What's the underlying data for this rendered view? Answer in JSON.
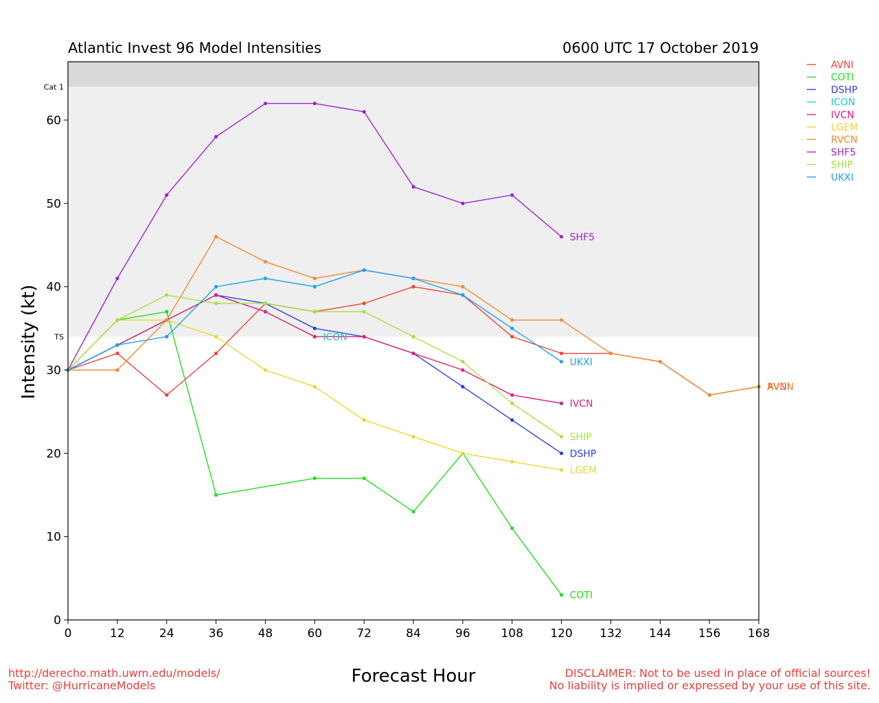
{
  "header": {
    "title": "Atlantic Invest 96 Model Intensities",
    "timestamp": "0600 UTC 17 October 2019"
  },
  "footer": {
    "url": "http://derecho.math.uwm.edu/models/",
    "twitter": "Twitter: @HurricaneModels",
    "disclaimer_line1": "DISCLAIMER: Not to be used in place of official sources!",
    "disclaimer_line2": "No liability is implied or expressed by your use of this site."
  },
  "chart_data": {
    "type": "line",
    "title": "Atlantic Invest 96 Model Intensities",
    "xlabel": "Forecast Hour",
    "ylabel": "Intensity (kt)",
    "xlim": [
      0,
      168
    ],
    "ylim": [
      0,
      67
    ],
    "x_ticks": [
      0,
      12,
      24,
      36,
      48,
      60,
      72,
      84,
      96,
      108,
      120,
      132,
      144,
      156,
      168
    ],
    "y_ticks": [
      0,
      10,
      20,
      30,
      40,
      50,
      60
    ],
    "grid": false,
    "legend_position": "outside top-right",
    "bands": [
      {
        "label": "Cat 1",
        "from": 64,
        "to": 67,
        "color": "#d9d9d9"
      },
      {
        "label": "TS",
        "from": 34,
        "to": 64,
        "color": "#efefef"
      }
    ],
    "series": [
      {
        "name": "AVNI",
        "color": "#f0433a",
        "x": [
          0,
          12,
          24,
          36,
          48,
          60,
          72,
          84,
          96,
          108,
          120,
          132,
          144,
          156,
          168
        ],
        "y": [
          30,
          32,
          27,
          32,
          38,
          37,
          38,
          40,
          39,
          34,
          32,
          32,
          31,
          27,
          28
        ],
        "end_label": "AVNI"
      },
      {
        "name": "COTI",
        "color": "#1ee01e",
        "x": [
          0,
          12,
          24,
          36,
          60,
          72,
          84,
          96,
          108,
          120
        ],
        "y": [
          30,
          36,
          37,
          15,
          17,
          17,
          13,
          20,
          11,
          3
        ],
        "end_label": "COTI"
      },
      {
        "name": "DSHP",
        "color": "#2a40e0",
        "x": [
          0,
          12,
          24,
          36,
          48,
          60,
          72,
          84,
          96,
          108,
          120
        ],
        "y": [
          30,
          33,
          36,
          39,
          38,
          35,
          34,
          32,
          28,
          24,
          20
        ],
        "end_label": "DSHP"
      },
      {
        "name": "ICON",
        "color": "#1ec8c8",
        "x": [
          0,
          12,
          24,
          36,
          48,
          60
        ],
        "y": [
          30,
          33,
          36,
          39,
          37,
          34
        ],
        "end_label": "ICON"
      },
      {
        "name": "IVCN",
        "color": "#e0207a",
        "x": [
          0,
          12,
          24,
          36,
          48,
          60,
          72,
          84,
          96,
          108,
          120
        ],
        "y": [
          30,
          33,
          36,
          39,
          37,
          34,
          34,
          32,
          30,
          27,
          26
        ],
        "end_label": "IVCN"
      },
      {
        "name": "LGEM",
        "color": "#e8d830",
        "x": [
          0,
          12,
          24,
          36,
          48,
          60,
          72,
          84,
          96,
          108,
          120
        ],
        "y": [
          30,
          36,
          36,
          34,
          30,
          28,
          24,
          22,
          20,
          19,
          18
        ],
        "end_label": "LGEM"
      },
      {
        "name": "RVCN",
        "color": "#f08a30",
        "x": [
          0,
          12,
          24,
          36,
          48,
          60,
          72,
          84,
          96,
          108,
          120,
          132,
          144,
          156,
          168
        ],
        "y": [
          30,
          30,
          36,
          46,
          43,
          41,
          42,
          41,
          40,
          36,
          36,
          32,
          31,
          27,
          28
        ],
        "end_label": "RVCN"
      },
      {
        "name": "SHF5",
        "color": "#a020d0",
        "x": [
          0,
          12,
          24,
          36,
          48,
          60,
          72,
          84,
          96,
          108,
          120
        ],
        "y": [
          30,
          41,
          51,
          58,
          62,
          62,
          61,
          52,
          50,
          51,
          46
        ],
        "end_label": "SHF5"
      },
      {
        "name": "SHIP",
        "color": "#a8e040",
        "x": [
          0,
          12,
          24,
          36,
          48,
          60,
          72,
          84,
          96,
          108,
          120
        ],
        "y": [
          30,
          36,
          39,
          38,
          38,
          37,
          37,
          34,
          31,
          26,
          22
        ],
        "end_label": "SHIP"
      },
      {
        "name": "UKXI",
        "color": "#20a0f0",
        "x": [
          0,
          12,
          24,
          36,
          48,
          60,
          72,
          84,
          96,
          108,
          120
        ],
        "y": [
          30,
          33,
          34,
          40,
          41,
          40,
          42,
          41,
          39,
          35,
          31
        ],
        "end_label": "UKXI"
      }
    ]
  }
}
